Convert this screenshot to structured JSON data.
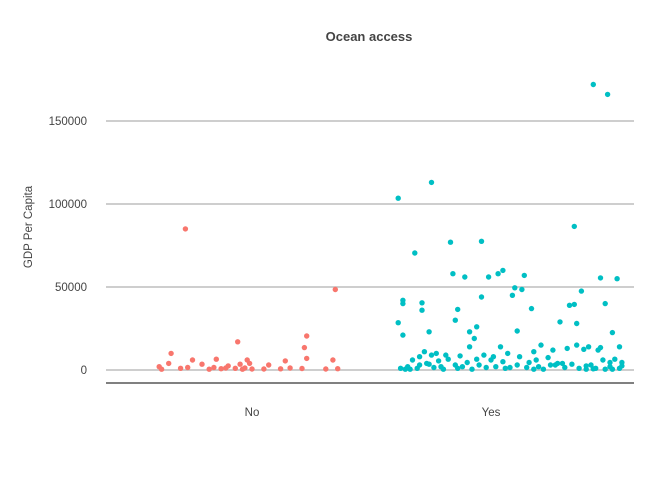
{
  "chart_data": {
    "type": "scatter",
    "title": "Ocean access",
    "xlabel": "",
    "ylabel": "GDP Per Capita",
    "categories": [
      "No",
      "Yes"
    ],
    "y_ticks": [
      0,
      50000,
      100000,
      150000
    ],
    "y_tick_labels": [
      "0",
      "50000",
      "100000",
      "150000"
    ],
    "ylim": [
      -8000,
      182000
    ],
    "grid": "horizontal",
    "legend": "none",
    "colors": {
      "No": "#F8766D",
      "Yes": "#00BFC4"
    },
    "series": [
      {
        "category": "No",
        "points": [
          [
            -0.39,
            2000
          ],
          [
            -0.38,
            500
          ],
          [
            -0.35,
            4000
          ],
          [
            -0.34,
            10000
          ],
          [
            -0.3,
            1000
          ],
          [
            -0.28,
            85000
          ],
          [
            -0.27,
            1500
          ],
          [
            -0.25,
            6000
          ],
          [
            -0.21,
            3500
          ],
          [
            -0.18,
            500
          ],
          [
            -0.16,
            1500
          ],
          [
            -0.15,
            6500
          ],
          [
            -0.13,
            800
          ],
          [
            -0.11,
            1200
          ],
          [
            -0.1,
            2500
          ],
          [
            -0.07,
            1000
          ],
          [
            -0.06,
            17000
          ],
          [
            -0.05,
            3500
          ],
          [
            -0.04,
            500
          ],
          [
            -0.03,
            1200
          ],
          [
            -0.02,
            6000
          ],
          [
            -0.01,
            4000
          ],
          [
            0.0,
            600
          ],
          [
            0.05,
            600
          ],
          [
            0.07,
            3000
          ],
          [
            0.12,
            700
          ],
          [
            0.14,
            5500
          ],
          [
            0.16,
            1200
          ],
          [
            0.21,
            900
          ],
          [
            0.22,
            13500
          ],
          [
            0.23,
            7000
          ],
          [
            0.23,
            20500
          ],
          [
            0.31,
            600
          ],
          [
            0.34,
            6000
          ],
          [
            0.35,
            48500
          ],
          [
            0.36,
            800
          ]
        ]
      },
      {
        "category": "Yes",
        "points": [
          [
            -0.39,
            103500
          ],
          [
            -0.39,
            28500
          ],
          [
            -0.38,
            1000
          ],
          [
            -0.37,
            40000
          ],
          [
            -0.37,
            42000
          ],
          [
            -0.37,
            21000
          ],
          [
            -0.36,
            500
          ],
          [
            -0.35,
            2000
          ],
          [
            -0.34,
            500
          ],
          [
            -0.33,
            6000
          ],
          [
            -0.32,
            70500
          ],
          [
            -0.31,
            1000
          ],
          [
            -0.3,
            3000
          ],
          [
            -0.3,
            8000
          ],
          [
            -0.29,
            36000
          ],
          [
            -0.28,
            11000
          ],
          [
            -0.29,
            40500
          ],
          [
            -0.27,
            4000
          ],
          [
            -0.26,
            23000
          ],
          [
            -0.26,
            3500
          ],
          [
            -0.25,
            9000
          ],
          [
            -0.25,
            113000
          ],
          [
            -0.24,
            1500
          ],
          [
            -0.23,
            10000
          ],
          [
            -0.22,
            5500
          ],
          [
            -0.21,
            2000
          ],
          [
            -0.2,
            500
          ],
          [
            -0.19,
            9000
          ],
          [
            -0.18,
            6500
          ],
          [
            -0.17,
            77000
          ],
          [
            -0.16,
            58000
          ],
          [
            -0.15,
            30000
          ],
          [
            -0.15,
            3000
          ],
          [
            -0.14,
            1000
          ],
          [
            -0.14,
            36500
          ],
          [
            -0.13,
            8500
          ],
          [
            -0.12,
            2000
          ],
          [
            -0.11,
            56000
          ],
          [
            -0.1,
            4500
          ],
          [
            -0.09,
            23000
          ],
          [
            -0.09,
            14000
          ],
          [
            -0.08,
            500
          ],
          [
            -0.07,
            19000
          ],
          [
            -0.06,
            6500
          ],
          [
            -0.06,
            26000
          ],
          [
            -0.05,
            3000
          ],
          [
            -0.04,
            77500
          ],
          [
            -0.03,
            9000
          ],
          [
            -0.04,
            44000
          ],
          [
            -0.02,
            1500
          ],
          [
            -0.01,
            56000
          ],
          [
            0.0,
            6000
          ],
          [
            0.01,
            8000
          ],
          [
            0.02,
            2000
          ],
          [
            0.03,
            58000
          ],
          [
            0.04,
            14000
          ],
          [
            0.05,
            60000
          ],
          [
            0.05,
            5000
          ],
          [
            0.06,
            1000
          ],
          [
            0.07,
            10000
          ],
          [
            0.08,
            1500
          ],
          [
            0.09,
            45000
          ],
          [
            0.1,
            49500
          ],
          [
            0.11,
            23500
          ],
          [
            0.11,
            3000
          ],
          [
            0.12,
            8000
          ],
          [
            0.13,
            48500
          ],
          [
            0.14,
            57000
          ],
          [
            0.15,
            1500
          ],
          [
            0.16,
            4500
          ],
          [
            0.17,
            37000
          ],
          [
            0.18,
            500
          ],
          [
            0.18,
            11000
          ],
          [
            0.19,
            6000
          ],
          [
            0.2,
            2000
          ],
          [
            0.21,
            15000
          ],
          [
            0.22,
            500
          ],
          [
            0.24,
            7500
          ],
          [
            0.25,
            3000
          ],
          [
            0.26,
            12000
          ],
          [
            0.27,
            3000
          ],
          [
            0.28,
            4000
          ],
          [
            0.29,
            29000
          ],
          [
            0.3,
            4000
          ],
          [
            0.31,
            1500
          ],
          [
            0.32,
            13000
          ],
          [
            0.33,
            39000
          ],
          [
            0.34,
            3500
          ],
          [
            0.35,
            39500
          ],
          [
            0.35,
            86500
          ],
          [
            0.36,
            28000
          ],
          [
            0.36,
            15000
          ],
          [
            0.37,
            1000
          ],
          [
            0.38,
            47500
          ],
          [
            0.39,
            12500
          ],
          [
            0.4,
            500
          ],
          [
            0.4,
            2500
          ],
          [
            0.41,
            14000
          ],
          [
            0.42,
            3000
          ],
          [
            0.43,
            172000
          ],
          [
            0.43,
            700
          ],
          [
            0.44,
            1000
          ],
          [
            0.45,
            12000
          ],
          [
            0.46,
            55500
          ],
          [
            0.46,
            13500
          ],
          [
            0.47,
            6000
          ],
          [
            0.48,
            500
          ],
          [
            0.48,
            40000
          ],
          [
            0.49,
            166000
          ],
          [
            0.5,
            2000
          ],
          [
            0.5,
            4500
          ],
          [
            0.51,
            500
          ],
          [
            0.51,
            22500
          ],
          [
            0.52,
            6500
          ],
          [
            0.53,
            55000
          ],
          [
            0.54,
            1000
          ],
          [
            0.54,
            14000
          ],
          [
            0.55,
            2500
          ],
          [
            0.55,
            4500
          ]
        ]
      }
    ]
  }
}
